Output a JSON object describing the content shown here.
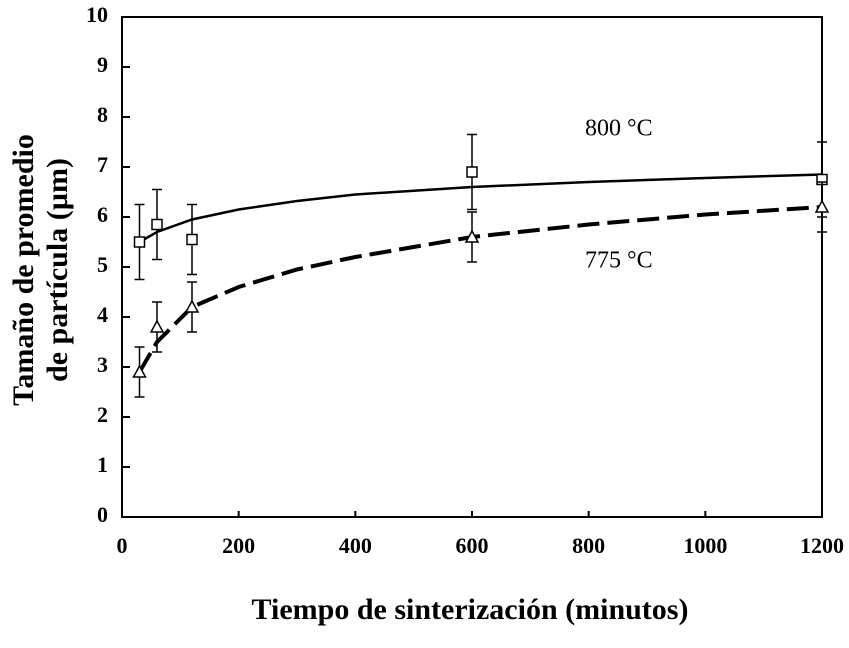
{
  "chart_data": {
    "type": "scatter",
    "x_label": "Tiempo de sinterización (minutos)",
    "y_label": [
      "Tamaño de promedio",
      "de partícula  (µm)"
    ],
    "x": [
      30,
      60,
      120,
      600,
      1200
    ],
    "fit_x": [
      30,
      60,
      120,
      200,
      300,
      400,
      600,
      800,
      1000,
      1200
    ],
    "series": [
      {
        "name": "800 °C",
        "marker": "square",
        "color": "#000000",
        "dash": false,
        "values": [
          5.5,
          5.85,
          5.55,
          6.9,
          6.75
        ],
        "errors": [
          0.75,
          0.7,
          0.7,
          0.75,
          0.75
        ],
        "fit_values": [
          5.5,
          5.7,
          5.95,
          6.15,
          6.32,
          6.45,
          6.6,
          6.7,
          6.78,
          6.85
        ]
      },
      {
        "name": "775 °C",
        "marker": "triangle",
        "color": "#000000",
        "dash": true,
        "values": [
          2.9,
          3.8,
          4.2,
          5.6,
          6.2
        ],
        "errors": [
          0.5,
          0.5,
          0.5,
          0.5,
          0.5
        ],
        "fit_values": [
          2.9,
          3.5,
          4.2,
          4.6,
          4.95,
          5.2,
          5.6,
          5.85,
          6.05,
          6.2
        ]
      }
    ],
    "xlim": [
      0,
      1200
    ],
    "xticks": [
      0,
      200,
      400,
      600,
      800,
      1000,
      1200
    ],
    "ylim": [
      0,
      10
    ],
    "yticks": [
      0,
      1,
      2,
      3,
      4,
      5,
      6,
      7,
      8,
      9,
      10
    ]
  }
}
